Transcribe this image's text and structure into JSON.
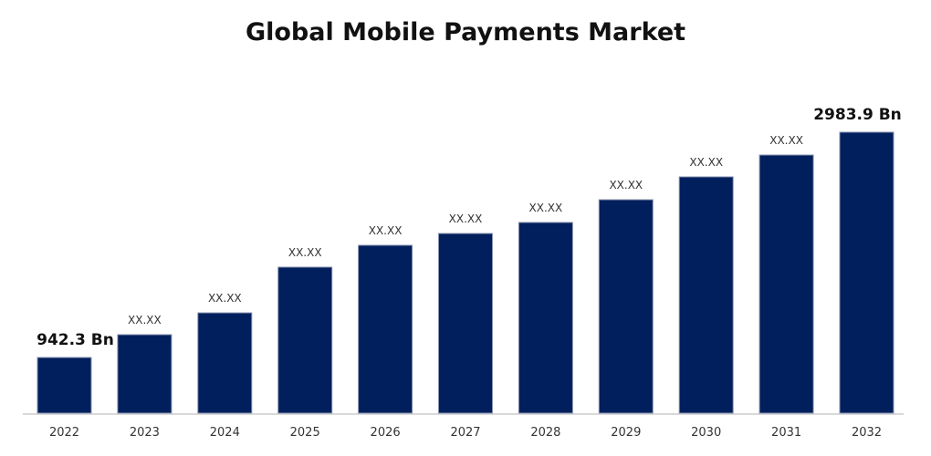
{
  "chart_data": {
    "type": "bar",
    "title": "Global Mobile Payments Market",
    "xlabel": "",
    "ylabel": "",
    "categories": [
      "2022",
      "2023",
      "2024",
      "2025",
      "2026",
      "2027",
      "2028",
      "2029",
      "2030",
      "2031",
      "2032"
    ],
    "values": [
      942.3,
      1149,
      1347,
      1761,
      1959,
      2066,
      2166,
      2372,
      2579,
      2777,
      2983.9
    ],
    "data_labels": [
      "942.3 Bn",
      "XX.XX",
      "XX.XX",
      "XX.XX",
      "XX.XX",
      "XX.XX",
      "XX.XX",
      "XX.XX",
      "XX.XX",
      "XX.XX",
      "2983.9 Bn"
    ],
    "ylim": [
      438,
      3000
    ],
    "grid": false,
    "legend": "none",
    "bar_color": "#001f5c",
    "unit": "Bn"
  }
}
